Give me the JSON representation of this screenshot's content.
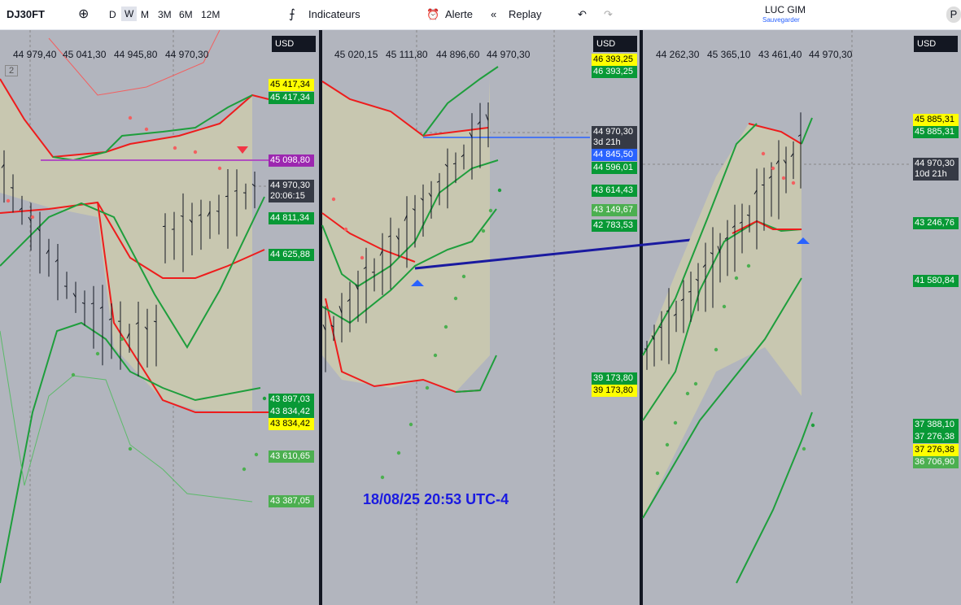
{
  "toolbar": {
    "symbol": "DJ30FT",
    "intervals": [
      "D",
      "W",
      "M",
      "3M",
      "6M",
      "12M"
    ],
    "indicators": "Indicateurs",
    "alert": "Alerte",
    "replay": "Replay",
    "user": "LUC GIM",
    "save": "Sauvegarder",
    "avatar": "P"
  },
  "panels": [
    {
      "currency": "USD",
      "ohlc": [
        "44 979,40",
        "45 041,30",
        "44 945,80",
        "44 970,30"
      ],
      "badge": "2",
      "price_labels": [
        {
          "text": "45 417,34",
          "kind": "yellow"
        },
        {
          "text": "45 417,34",
          "kind": "green"
        },
        {
          "text": "45 098,80",
          "kind": "purple"
        },
        {
          "text": "44 970,30",
          "sub": "20:06:15",
          "kind": "dark"
        },
        {
          "text": "44 811,34",
          "kind": "green"
        },
        {
          "text": "44 625,88",
          "kind": "green"
        },
        {
          "text": "43 897,03",
          "kind": "green"
        },
        {
          "text": "43 834,42",
          "kind": "green"
        },
        {
          "text": "43 834,42",
          "kind": "yellow"
        },
        {
          "text": "43 610,65",
          "kind": "light"
        },
        {
          "text": "43 387,05",
          "kind": "light"
        }
      ]
    },
    {
      "currency": "USD",
      "ohlc": [
        "45 020,15",
        "45 111,80",
        "44 896,60",
        "44 970,30"
      ],
      "annotation": "18/08/25 20:53 UTC-4",
      "price_labels": [
        {
          "text": "46 393,25",
          "kind": "yellow"
        },
        {
          "text": "46 393,25",
          "kind": "green"
        },
        {
          "text": "44 970,30",
          "sub": "3d 21h",
          "kind": "dark"
        },
        {
          "text": "44 845,50",
          "kind": "blue"
        },
        {
          "text": "44 596,01",
          "kind": "green"
        },
        {
          "text": "43 614,43",
          "kind": "green"
        },
        {
          "text": "43 149,67",
          "kind": "light"
        },
        {
          "text": "42 783,53",
          "kind": "green"
        },
        {
          "text": "39 173,80",
          "kind": "green"
        },
        {
          "text": "39 173,80",
          "kind": "yellow"
        }
      ]
    },
    {
      "currency": "USD",
      "ohlc": [
        "44 262,30",
        "45 365,10",
        "43 461,40",
        "44 970,30"
      ],
      "price_labels": [
        {
          "text": "45 885,31",
          "kind": "yellow"
        },
        {
          "text": "45 885,31",
          "kind": "green"
        },
        {
          "text": "44 970,30",
          "sub": "10d 21h",
          "kind": "dark"
        },
        {
          "text": "43 246,76",
          "kind": "green"
        },
        {
          "text": "41 580,84",
          "kind": "green"
        },
        {
          "text": "37 388,10",
          "kind": "green"
        },
        {
          "text": "37 276,38",
          "kind": "green"
        },
        {
          "text": "37 276,38",
          "kind": "yellow"
        },
        {
          "text": "36 706,90",
          "kind": "light"
        }
      ]
    }
  ]
}
